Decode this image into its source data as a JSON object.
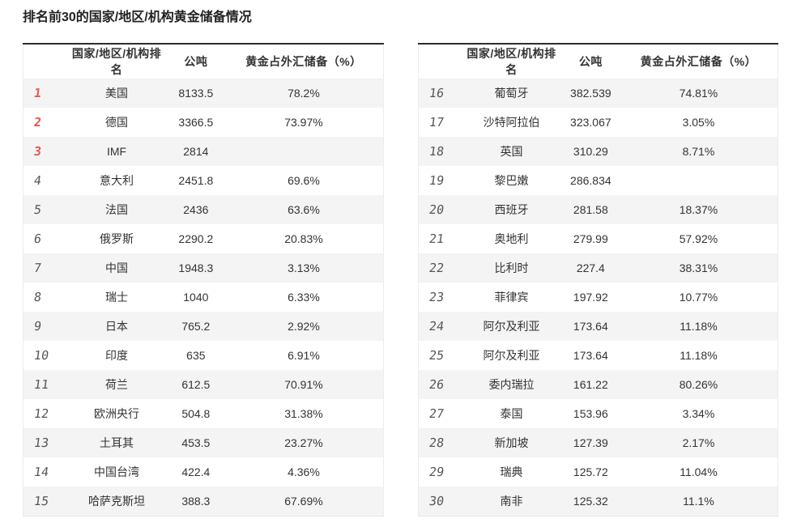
{
  "page": {
    "title": "排名前30的国家/地区/机构黄金储备情况"
  },
  "colors": {
    "accent_red_top3_rank": "#ef5350",
    "rank_gray": "#555555",
    "row_stripe": "#f4f4f5",
    "table_top_border": "#2d2d2d",
    "table_side_border": "#ececec",
    "text": "#333333"
  },
  "chart_data": [
    {
      "type": "table",
      "columns": [
        "",
        "国家/地区/机构排名",
        "公吨",
        "黄金占外汇储备（%）"
      ],
      "rows": [
        [
          "1",
          "美国",
          "8133.5",
          "78.2%"
        ],
        [
          "2",
          "德国",
          "3366.5",
          "73.97%"
        ],
        [
          "3",
          "IMF",
          "2814",
          ""
        ],
        [
          "4",
          "意大利",
          "2451.8",
          "69.6%"
        ],
        [
          "5",
          "法国",
          "2436",
          "63.6%"
        ],
        [
          "6",
          "俄罗斯",
          "2290.2",
          "20.83%"
        ],
        [
          "7",
          "中国",
          "1948.3",
          "3.13%"
        ],
        [
          "8",
          "瑞士",
          "1040",
          "6.33%"
        ],
        [
          "9",
          "日本",
          "765.2",
          "2.92%"
        ],
        [
          "10",
          "印度",
          "635",
          "6.91%"
        ],
        [
          "11",
          "荷兰",
          "612.5",
          "70.91%"
        ],
        [
          "12",
          "欧洲央行",
          "504.8",
          "31.38%"
        ],
        [
          "13",
          "土耳其",
          "453.5",
          "23.27%"
        ],
        [
          "14",
          "中国台湾",
          "422.4",
          "4.36%"
        ],
        [
          "15",
          "哈萨克斯坦",
          "388.3",
          "67.69%"
        ]
      ]
    },
    {
      "type": "table",
      "columns": [
        "",
        "国家/地区/机构排名",
        "公吨",
        "黄金占外汇储备（%）"
      ],
      "rows": [
        [
          "16",
          "葡萄牙",
          "382.539",
          "74.81%"
        ],
        [
          "17",
          "沙特阿拉伯",
          "323.067",
          "3.05%"
        ],
        [
          "18",
          "英国",
          "310.29",
          "8.71%"
        ],
        [
          "19",
          "黎巴嫩",
          "286.834",
          ""
        ],
        [
          "20",
          "西班牙",
          "281.58",
          "18.37%"
        ],
        [
          "21",
          "奥地利",
          "279.99",
          "57.92%"
        ],
        [
          "22",
          "比利时",
          "227.4",
          "38.31%"
        ],
        [
          "23",
          "菲律宾",
          "197.92",
          "10.77%"
        ],
        [
          "24",
          "阿尔及利亚",
          "173.64",
          "11.18%"
        ],
        [
          "25",
          "阿尔及利亚",
          "173.64",
          "11.18%"
        ],
        [
          "26",
          "委内瑞拉",
          "161.22",
          "80.26%"
        ],
        [
          "27",
          "泰国",
          "153.96",
          "3.34%"
        ],
        [
          "28",
          "新加坡",
          "127.39",
          "2.17%"
        ],
        [
          "29",
          "瑞典",
          "125.72",
          "11.04%"
        ],
        [
          "30",
          "南非",
          "125.32",
          "11.1%"
        ]
      ]
    }
  ]
}
